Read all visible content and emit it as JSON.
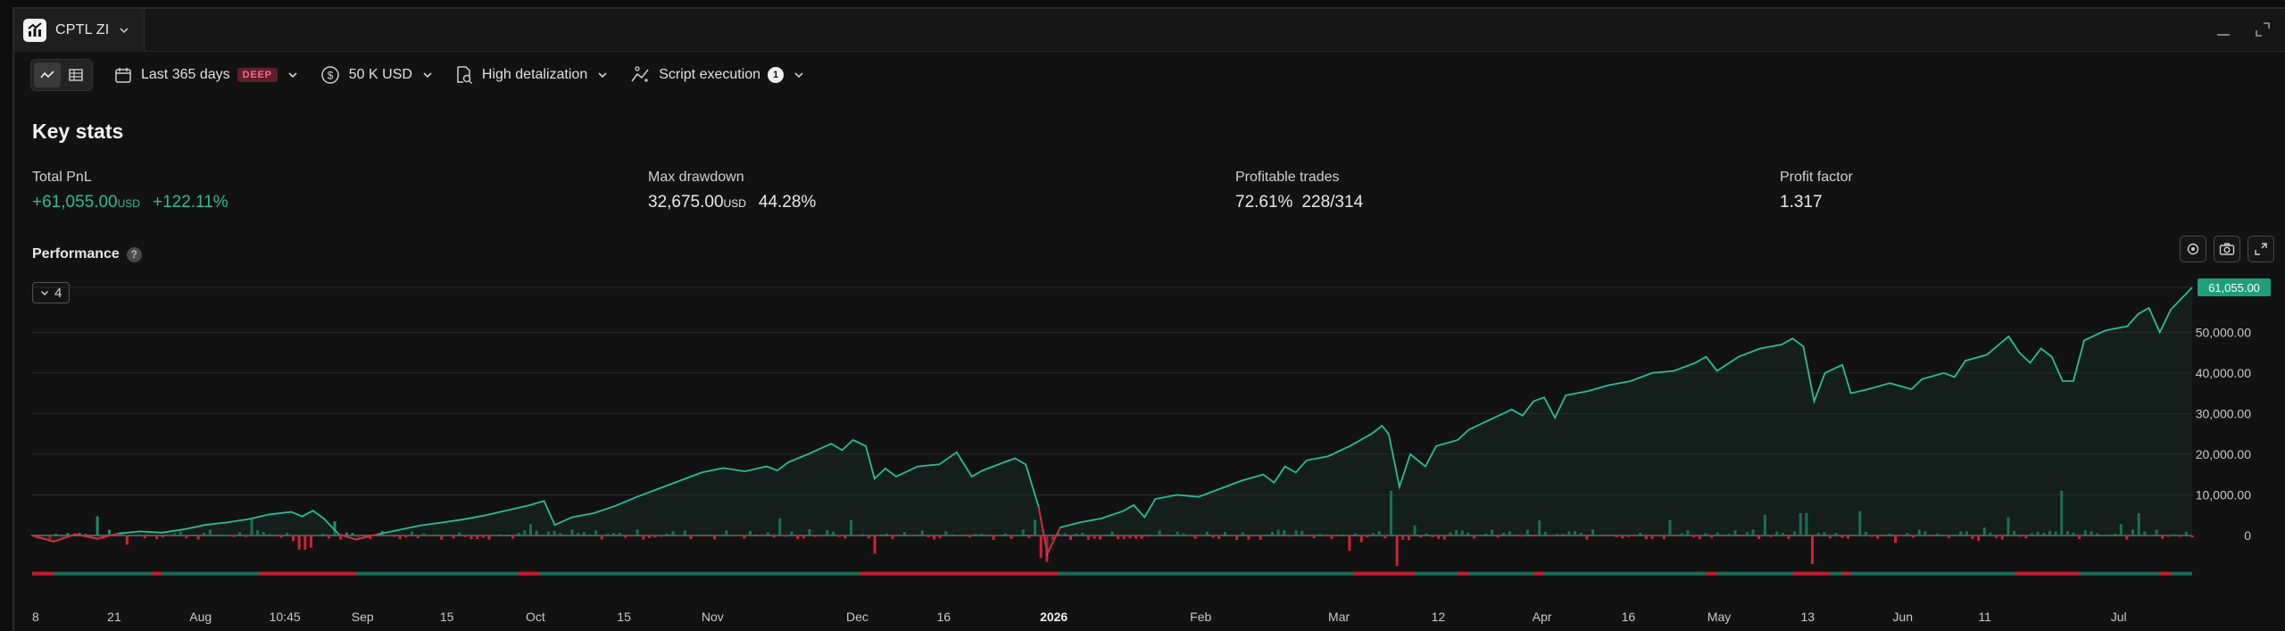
{
  "tab": {
    "title": "CPTL ZI"
  },
  "toolbar": {
    "period": "Last 365 days",
    "period_badge": "DEEP",
    "capital": "50 K USD",
    "detalization": "High detalization",
    "script": "Script execution",
    "script_count": "1"
  },
  "key_stats": {
    "title": "Key stats",
    "total_pnl": {
      "label": "Total PnL",
      "value": "+61,055.00",
      "unit": "USD",
      "percent": "+122.11%"
    },
    "max_drawdown": {
      "label": "Max drawdown",
      "value": "32,675.00",
      "unit": "USD",
      "percent": "44.28%"
    },
    "profitable_trades": {
      "label": "Profitable trades",
      "percent": "72.61%",
      "ratio": "228/314"
    },
    "profit_factor": {
      "label": "Profit factor",
      "value": "1.317"
    }
  },
  "performance": {
    "title": "Performance",
    "help": "?",
    "series_count": "4"
  },
  "colors": {
    "accent_green": "#2bbd92",
    "loss_red": "#e0243a",
    "badge_bg": "#1f9f78"
  },
  "chart_data": {
    "type": "line",
    "last_value_label": "61,055.00",
    "y_ticks": [
      "50,000.00",
      "40,000.00",
      "30,000.00",
      "20,000.00",
      "10,000.00",
      "0"
    ],
    "y_tick_values": [
      50000,
      40000,
      30000,
      20000,
      10000,
      0
    ],
    "ylim": [
      -8500,
      61055
    ],
    "x_ticks": [
      {
        "label": "8",
        "t": 0.0
      },
      {
        "label": "21",
        "t": 0.038
      },
      {
        "label": "Aug",
        "t": 0.078
      },
      {
        "label": "10:45",
        "t": 0.117
      },
      {
        "label": "Sep",
        "t": 0.153
      },
      {
        "label": "15",
        "t": 0.192
      },
      {
        "label": "Oct",
        "t": 0.233
      },
      {
        "label": "15",
        "t": 0.274
      },
      {
        "label": "Nov",
        "t": 0.315
      },
      {
        "label": "Dec",
        "t": 0.382
      },
      {
        "label": "16",
        "t": 0.422
      },
      {
        "label": "2026",
        "t": 0.473,
        "bold": true
      },
      {
        "label": "Feb",
        "t": 0.541
      },
      {
        "label": "Mar",
        "t": 0.605
      },
      {
        "label": "12",
        "t": 0.651
      },
      {
        "label": "Apr",
        "t": 0.699
      },
      {
        "label": "16",
        "t": 0.739
      },
      {
        "label": "May",
        "t": 0.781
      },
      {
        "label": "13",
        "t": 0.822
      },
      {
        "label": "Jun",
        "t": 0.866
      },
      {
        "label": "11",
        "t": 0.904
      },
      {
        "label": "Jul",
        "t": 0.966
      }
    ],
    "cumulative_pnl": [
      {
        "t": 0.0,
        "v": 0
      },
      {
        "t": 0.01,
        "v": -1500
      },
      {
        "t": 0.02,
        "v": 300
      },
      {
        "t": 0.03,
        "v": -800
      },
      {
        "t": 0.04,
        "v": 500
      },
      {
        "t": 0.05,
        "v": 1000
      },
      {
        "t": 0.06,
        "v": 700
      },
      {
        "t": 0.07,
        "v": 1500
      },
      {
        "t": 0.08,
        "v": 2600
      },
      {
        "t": 0.09,
        "v": 3200
      },
      {
        "t": 0.1,
        "v": 4000
      },
      {
        "t": 0.11,
        "v": 5200
      },
      {
        "t": 0.12,
        "v": 5800
      },
      {
        "t": 0.125,
        "v": 4700
      },
      {
        "t": 0.13,
        "v": 6100
      },
      {
        "t": 0.135,
        "v": 4200
      },
      {
        "t": 0.142,
        "v": 300
      },
      {
        "t": 0.15,
        "v": -1000
      },
      {
        "t": 0.16,
        "v": 300
      },
      {
        "t": 0.17,
        "v": 1400
      },
      {
        "t": 0.18,
        "v": 2500
      },
      {
        "t": 0.19,
        "v": 3200
      },
      {
        "t": 0.2,
        "v": 4000
      },
      {
        "t": 0.21,
        "v": 5000
      },
      {
        "t": 0.22,
        "v": 6200
      },
      {
        "t": 0.23,
        "v": 7400
      },
      {
        "t": 0.237,
        "v": 8500
      },
      {
        "t": 0.242,
        "v": 2600
      },
      {
        "t": 0.25,
        "v": 4500
      },
      {
        "t": 0.26,
        "v": 5500
      },
      {
        "t": 0.27,
        "v": 7300
      },
      {
        "t": 0.28,
        "v": 9500
      },
      {
        "t": 0.29,
        "v": 11500
      },
      {
        "t": 0.3,
        "v": 13500
      },
      {
        "t": 0.31,
        "v": 15500
      },
      {
        "t": 0.32,
        "v": 16600
      },
      {
        "t": 0.33,
        "v": 15800
      },
      {
        "t": 0.34,
        "v": 17000
      },
      {
        "t": 0.345,
        "v": 16000
      },
      {
        "t": 0.35,
        "v": 18000
      },
      {
        "t": 0.36,
        "v": 20200
      },
      {
        "t": 0.37,
        "v": 22600
      },
      {
        "t": 0.375,
        "v": 21000
      },
      {
        "t": 0.38,
        "v": 23500
      },
      {
        "t": 0.386,
        "v": 22000
      },
      {
        "t": 0.39,
        "v": 14000
      },
      {
        "t": 0.395,
        "v": 16500
      },
      {
        "t": 0.4,
        "v": 14500
      },
      {
        "t": 0.41,
        "v": 17000
      },
      {
        "t": 0.42,
        "v": 17500
      },
      {
        "t": 0.428,
        "v": 20500
      },
      {
        "t": 0.435,
        "v": 14500
      },
      {
        "t": 0.44,
        "v": 16000
      },
      {
        "t": 0.45,
        "v": 18000
      },
      {
        "t": 0.455,
        "v": 19000
      },
      {
        "t": 0.46,
        "v": 17500
      },
      {
        "t": 0.466,
        "v": 7000
      },
      {
        "t": 0.47,
        "v": -4500
      },
      {
        "t": 0.476,
        "v": 2000
      },
      {
        "t": 0.485,
        "v": 3200
      },
      {
        "t": 0.495,
        "v": 4200
      },
      {
        "t": 0.505,
        "v": 6000
      },
      {
        "t": 0.51,
        "v": 7500
      },
      {
        "t": 0.515,
        "v": 4500
      },
      {
        "t": 0.52,
        "v": 9000
      },
      {
        "t": 0.53,
        "v": 10000
      },
      {
        "t": 0.54,
        "v": 9500
      },
      {
        "t": 0.55,
        "v": 11500
      },
      {
        "t": 0.56,
        "v": 13500
      },
      {
        "t": 0.57,
        "v": 15000
      },
      {
        "t": 0.575,
        "v": 13000
      },
      {
        "t": 0.58,
        "v": 17000
      },
      {
        "t": 0.585,
        "v": 15500
      },
      {
        "t": 0.59,
        "v": 18500
      },
      {
        "t": 0.6,
        "v": 19500
      },
      {
        "t": 0.61,
        "v": 22000
      },
      {
        "t": 0.62,
        "v": 25000
      },
      {
        "t": 0.625,
        "v": 27000
      },
      {
        "t": 0.628,
        "v": 25000
      },
      {
        "t": 0.633,
        "v": 12000
      },
      {
        "t": 0.638,
        "v": 20000
      },
      {
        "t": 0.645,
        "v": 17000
      },
      {
        "t": 0.65,
        "v": 22000
      },
      {
        "t": 0.66,
        "v": 23500
      },
      {
        "t": 0.665,
        "v": 26000
      },
      {
        "t": 0.675,
        "v": 28500
      },
      {
        "t": 0.685,
        "v": 31000
      },
      {
        "t": 0.69,
        "v": 29500
      },
      {
        "t": 0.695,
        "v": 33000
      },
      {
        "t": 0.7,
        "v": 34000
      },
      {
        "t": 0.705,
        "v": 29000
      },
      {
        "t": 0.71,
        "v": 34500
      },
      {
        "t": 0.72,
        "v": 35500
      },
      {
        "t": 0.73,
        "v": 37000
      },
      {
        "t": 0.74,
        "v": 38000
      },
      {
        "t": 0.75,
        "v": 40000
      },
      {
        "t": 0.76,
        "v": 40500
      },
      {
        "t": 0.77,
        "v": 42500
      },
      {
        "t": 0.775,
        "v": 44000
      },
      {
        "t": 0.78,
        "v": 40500
      },
      {
        "t": 0.79,
        "v": 44000
      },
      {
        "t": 0.8,
        "v": 46000
      },
      {
        "t": 0.81,
        "v": 47000
      },
      {
        "t": 0.815,
        "v": 48500
      },
      {
        "t": 0.82,
        "v": 46500
      },
      {
        "t": 0.825,
        "v": 33000
      },
      {
        "t": 0.83,
        "v": 40000
      },
      {
        "t": 0.838,
        "v": 42000
      },
      {
        "t": 0.842,
        "v": 35000
      },
      {
        "t": 0.85,
        "v": 36000
      },
      {
        "t": 0.86,
        "v": 37500
      },
      {
        "t": 0.87,
        "v": 36000
      },
      {
        "t": 0.875,
        "v": 38500
      },
      {
        "t": 0.885,
        "v": 40000
      },
      {
        "t": 0.89,
        "v": 39000
      },
      {
        "t": 0.895,
        "v": 43000
      },
      {
        "t": 0.905,
        "v": 44500
      },
      {
        "t": 0.915,
        "v": 49000
      },
      {
        "t": 0.92,
        "v": 45000
      },
      {
        "t": 0.925,
        "v": 42500
      },
      {
        "t": 0.93,
        "v": 46000
      },
      {
        "t": 0.935,
        "v": 44000
      },
      {
        "t": 0.94,
        "v": 38000
      },
      {
        "t": 0.945,
        "v": 38000
      },
      {
        "t": 0.95,
        "v": 48000
      },
      {
        "t": 0.96,
        "v": 50500
      },
      {
        "t": 0.97,
        "v": 51500
      },
      {
        "t": 0.975,
        "v": 54500
      },
      {
        "t": 0.98,
        "v": 56000
      },
      {
        "t": 0.985,
        "v": 50000
      },
      {
        "t": 0.99,
        "v": 55500
      },
      {
        "t": 1.0,
        "v": 61055
      }
    ]
  }
}
